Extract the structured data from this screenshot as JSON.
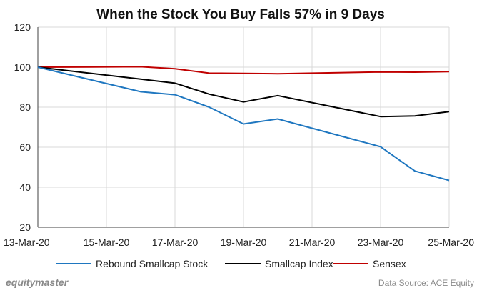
{
  "chart_data": {
    "type": "line",
    "title": "When the Stock You Buy Falls 57% in 9 Days",
    "xlabel": "",
    "ylabel": "",
    "x": [
      "13-Mar-20",
      "16-Mar-20",
      "17-Mar-20",
      "18-Mar-20",
      "19-Mar-20",
      "20-Mar-20",
      "23-Mar-20",
      "24-Mar-20",
      "25-Mar-20"
    ],
    "x_ticks": [
      "13-Mar-20",
      "15-Mar-20",
      "17-Mar-20",
      "19-Mar-20",
      "21-Mar-20",
      "23-Mar-20",
      "25-Mar-20"
    ],
    "ylim": [
      20,
      120
    ],
    "y_ticks": [
      20,
      40,
      60,
      80,
      100,
      120
    ],
    "grid": true,
    "legend_position": "bottom",
    "series": [
      {
        "name": "Rebound Smallcap Stock",
        "color": "#1f77c0",
        "values": [
          100,
          87.7,
          86.2,
          80.0,
          71.6,
          74.1,
          60.2,
          48.1,
          43.4
        ]
      },
      {
        "name": "Smallcap Index",
        "color": "#000000",
        "values": [
          100,
          94.0,
          92.0,
          86.5,
          82.6,
          85.8,
          75.3,
          75.6,
          77.8
        ]
      },
      {
        "name": "Sensex",
        "color": "#c00000",
        "values": [
          100,
          100.2,
          99.2,
          97.0,
          96.9,
          96.7,
          97.6,
          97.5,
          97.8
        ]
      }
    ]
  },
  "footer": {
    "brand": "equitymaster",
    "source": "Data Source: ACE Equity"
  }
}
